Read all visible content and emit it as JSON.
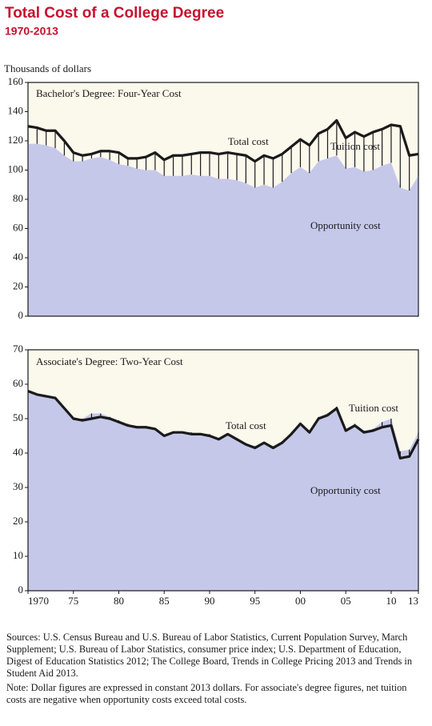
{
  "header": {
    "title": "Total Cost of a College Degree",
    "subtitle": "1970-2013",
    "units": "Thousands of dollars"
  },
  "chart_data": [
    {
      "type": "area-line",
      "title": "Bachelor's Degree: Four-Year Cost",
      "tuition_label": "Tuition cost",
      "x": [
        1970,
        1971,
        1972,
        1973,
        1974,
        1975,
        1976,
        1977,
        1978,
        1979,
        1980,
        1981,
        1982,
        1983,
        1984,
        1985,
        1986,
        1987,
        1988,
        1989,
        1990,
        1991,
        1992,
        1993,
        1994,
        1995,
        1996,
        1997,
        1998,
        1999,
        2000,
        2001,
        2002,
        2003,
        2004,
        2005,
        2006,
        2007,
        2008,
        2009,
        2010,
        2011,
        2012,
        2013
      ],
      "series": [
        {
          "name": "Total cost",
          "color": "#1a1a1a",
          "values": [
            130,
            129,
            127,
            127,
            120,
            112,
            110,
            111,
            113,
            113,
            112,
            108,
            108,
            109,
            112,
            107,
            110,
            110,
            111,
            112,
            112,
            111,
            112,
            111,
            110,
            106,
            110,
            108,
            111,
            116,
            121,
            117,
            125,
            128,
            134,
            122,
            126,
            123,
            126,
            128,
            131,
            130,
            110,
            111
          ]
        },
        {
          "name": "Opportunity cost",
          "color": "#c6c8ea",
          "values": [
            118,
            118,
            117,
            115,
            110,
            106,
            106,
            108,
            109,
            107,
            104,
            103,
            101,
            100,
            100,
            96,
            96,
            96,
            97,
            96,
            96,
            94,
            94,
            93,
            91,
            88,
            90,
            88,
            92,
            98,
            102,
            98,
            106,
            108,
            110,
            101,
            102,
            99,
            100,
            103,
            105,
            88,
            86,
            96
          ]
        }
      ],
      "xlim": [
        1970,
        2013
      ],
      "ylim": [
        0,
        160
      ],
      "yticks": [
        0,
        20,
        40,
        60,
        80,
        100,
        120,
        140,
        160
      ]
    },
    {
      "type": "area-line",
      "title": "Associate's Degree: Two-Year Cost",
      "tuition_label": "Tuition cost",
      "x": [
        1970,
        1971,
        1972,
        1973,
        1974,
        1975,
        1976,
        1977,
        1978,
        1979,
        1980,
        1981,
        1982,
        1983,
        1984,
        1985,
        1986,
        1987,
        1988,
        1989,
        1990,
        1991,
        1992,
        1993,
        1994,
        1995,
        1996,
        1997,
        1998,
        1999,
        2000,
        2001,
        2002,
        2003,
        2004,
        2005,
        2006,
        2007,
        2008,
        2009,
        2010,
        2011,
        2012,
        2013
      ],
      "series": [
        {
          "name": "Total cost",
          "color": "#1a1a1a",
          "values": [
            58,
            57,
            56.5,
            56,
            53,
            50,
            49.5,
            50,
            50.5,
            50,
            49,
            48,
            47.5,
            47.5,
            47,
            45,
            46,
            46,
            45.5,
            45.5,
            45,
            44,
            45.5,
            44,
            42.5,
            41.5,
            43,
            41.5,
            43,
            45.5,
            48.5,
            46,
            50,
            51,
            53,
            46.5,
            48,
            46,
            46.5,
            47.5,
            48,
            38.5,
            39,
            44
          ]
        },
        {
          "name": "Opportunity cost",
          "color": "#c6c8ea",
          "values": [
            58,
            57,
            56.5,
            56,
            53,
            50,
            50,
            51.5,
            51.5,
            50.5,
            49.5,
            48.5,
            47.5,
            47.5,
            47,
            45,
            46,
            46,
            46,
            45.5,
            45.5,
            44,
            45,
            44,
            42.5,
            42,
            43,
            42,
            43.5,
            46,
            48.5,
            46,
            50.5,
            51.5,
            53.5,
            47,
            48.5,
            46.5,
            47,
            49,
            50,
            40.5,
            41,
            46
          ]
        }
      ],
      "xlim": [
        1970,
        2013
      ],
      "ylim": [
        0,
        70
      ],
      "yticks": [
        0,
        10,
        20,
        30,
        40,
        50,
        60,
        70
      ],
      "xticks": [
        1970,
        {
          "value": 1975,
          "label": "75"
        },
        {
          "value": 1980,
          "label": "80"
        },
        {
          "value": 1985,
          "label": "85"
        },
        {
          "value": 1990,
          "label": "90"
        },
        {
          "value": 1995,
          "label": "95"
        },
        {
          "value": 2000,
          "label": "00"
        },
        {
          "value": 2005,
          "label": "05"
        },
        {
          "value": 2010,
          "label": "10"
        },
        {
          "value": 2013,
          "label": "13"
        }
      ]
    }
  ],
  "footer": {
    "sources": "Sources: U.S. Census Bureau and U.S. Bureau of Labor Statistics, Current Population Survey, March Supplement; U.S. Bureau of Labor Statistics, consumer price index; U.S. Department of Education, Digest of Education Statistics 2012; The College Board, Trends in College Pricing 2013 and Trends in Student Aid 2013.",
    "note": "Note: Dollar figures are expressed in constant 2013 dollars. For associate's degree figures, net tuition costs are negative when opportunity costs exceed total costs."
  }
}
